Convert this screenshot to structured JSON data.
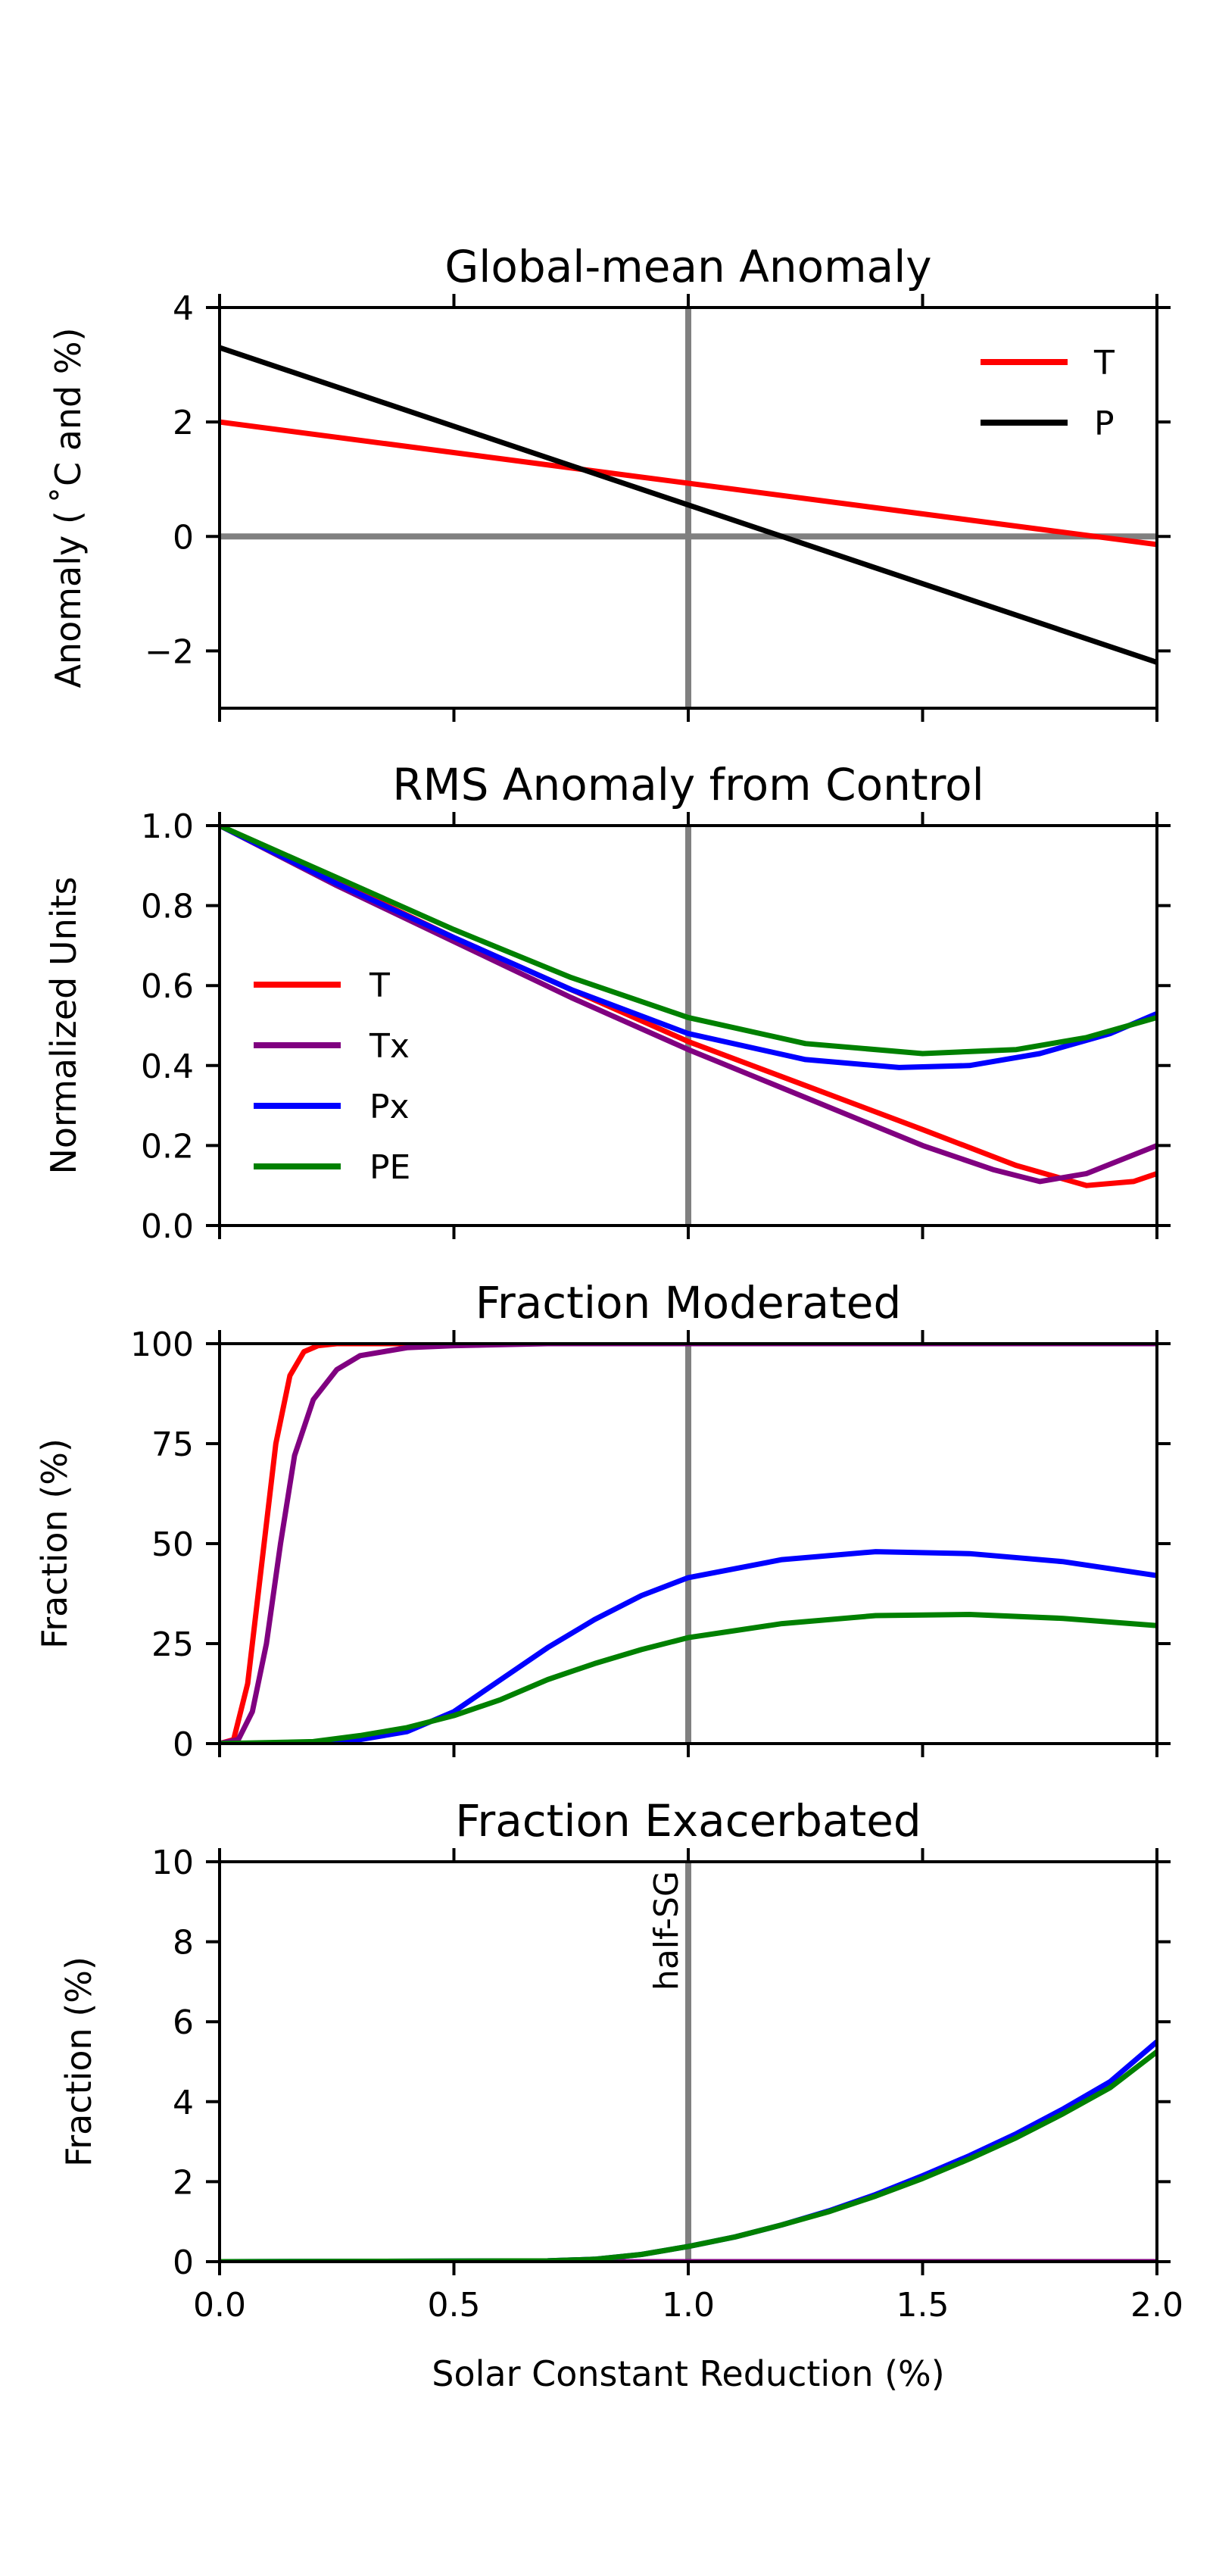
{
  "figure": {
    "shared_xlabel": "Solar Constant Reduction (%)",
    "x_tick_labels": [
      "0.0",
      "0.5",
      "1.0",
      "1.5",
      "2.0"
    ]
  },
  "chart_data": [
    {
      "type": "line",
      "title": "Global-mean Anomaly",
      "xlabel": "",
      "ylabel": "Anomaly ( ˚C and %)",
      "xlim": [
        0,
        2
      ],
      "ylim": [
        -3,
        4
      ],
      "x_ticks": [
        0,
        0.5,
        1,
        1.5,
        2
      ],
      "y_ticks": [
        -2,
        0,
        2,
        4
      ],
      "y_tick_labels": [
        "−2",
        "0",
        "2",
        "4"
      ],
      "grid": false,
      "legend": "top-right",
      "reference_lines": {
        "vertical_x": 1.0,
        "horizontal_y": 0,
        "color": "#808080"
      },
      "series": [
        {
          "name": "T",
          "color": "#ff0000",
          "x": [
            0,
            2
          ],
          "y": [
            2.0,
            -0.14
          ]
        },
        {
          "name": "P",
          "color": "#000000",
          "x": [
            0,
            2
          ],
          "y": [
            3.3,
            -2.2
          ]
        }
      ]
    },
    {
      "type": "line",
      "title": "RMS Anomaly from Control",
      "xlabel": "",
      "ylabel": "Normalized Units",
      "xlim": [
        0,
        2
      ],
      "ylim": [
        0,
        1
      ],
      "x_ticks": [
        0,
        0.5,
        1,
        1.5,
        2
      ],
      "y_ticks": [
        0,
        0.2,
        0.4,
        0.6,
        0.8,
        1.0
      ],
      "y_tick_labels": [
        "0.0",
        "0.2",
        "0.4",
        "0.6",
        "0.8",
        "1.0"
      ],
      "grid": false,
      "legend": "center-left",
      "reference_lines": {
        "vertical_x": 1.0,
        "color": "#808080"
      },
      "series": [
        {
          "name": "T",
          "color": "#ff0000",
          "x": [
            0,
            0.25,
            0.5,
            0.75,
            1.0,
            1.25,
            1.5,
            1.7,
            1.85,
            1.95,
            2.0
          ],
          "y": [
            1.0,
            0.86,
            0.72,
            0.59,
            0.46,
            0.35,
            0.24,
            0.15,
            0.1,
            0.11,
            0.13
          ]
        },
        {
          "name": "Tx",
          "color": "#800080",
          "x": [
            0,
            0.25,
            0.5,
            0.75,
            1.0,
            1.25,
            1.5,
            1.65,
            1.75,
            1.85,
            2.0
          ],
          "y": [
            1.0,
            0.85,
            0.71,
            0.57,
            0.44,
            0.32,
            0.2,
            0.14,
            0.11,
            0.13,
            0.2
          ]
        },
        {
          "name": "Px",
          "color": "#0000ff",
          "x": [
            0,
            0.25,
            0.5,
            0.75,
            1.0,
            1.25,
            1.45,
            1.6,
            1.75,
            1.9,
            2.0
          ],
          "y": [
            1.0,
            0.855,
            0.72,
            0.59,
            0.48,
            0.415,
            0.395,
            0.4,
            0.43,
            0.48,
            0.53
          ]
        },
        {
          "name": "PE",
          "color": "#008000",
          "x": [
            0,
            0.25,
            0.5,
            0.75,
            1.0,
            1.25,
            1.5,
            1.7,
            1.85,
            2.0
          ],
          "y": [
            1.0,
            0.87,
            0.74,
            0.62,
            0.52,
            0.455,
            0.43,
            0.44,
            0.47,
            0.52
          ]
        }
      ]
    },
    {
      "type": "line",
      "title": "Fraction Moderated",
      "xlabel": "",
      "ylabel": "Fraction (%)",
      "xlim": [
        0,
        2
      ],
      "ylim": [
        0,
        100
      ],
      "x_ticks": [
        0,
        0.5,
        1,
        1.5,
        2
      ],
      "y_ticks": [
        0,
        25,
        50,
        75,
        100
      ],
      "y_tick_labels": [
        "0",
        "25",
        "50",
        "75",
        "100"
      ],
      "grid": false,
      "legend": "none",
      "reference_lines": {
        "vertical_x": 1.0,
        "color": "#808080"
      },
      "series": [
        {
          "name": "",
          "color": "#ff0000",
          "x": [
            0,
            0.03,
            0.06,
            0.09,
            0.12,
            0.15,
            0.18,
            0.21,
            0.25,
            0.3,
            2.0
          ],
          "y": [
            0,
            1,
            15,
            45,
            75,
            92,
            98,
            99.5,
            100,
            100,
            100
          ]
        },
        {
          "name": "",
          "color": "#800080",
          "x": [
            0,
            0.04,
            0.07,
            0.1,
            0.13,
            0.16,
            0.2,
            0.25,
            0.3,
            0.4,
            0.5,
            0.7,
            2.0
          ],
          "y": [
            0,
            1,
            8,
            25,
            50,
            72,
            86,
            93.5,
            97,
            99,
            99.5,
            100,
            100
          ]
        },
        {
          "name": "",
          "color": "#0000ff",
          "x": [
            0,
            0.2,
            0.3,
            0.4,
            0.5,
            0.6,
            0.7,
            0.8,
            0.9,
            1.0,
            1.2,
            1.4,
            1.6,
            1.8,
            2.0
          ],
          "y": [
            0,
            0.2,
            1,
            3,
            8,
            16,
            24,
            31,
            37,
            41.5,
            46,
            48,
            47.5,
            45.5,
            42
          ]
        },
        {
          "name": "",
          "color": "#008000",
          "x": [
            0,
            0.2,
            0.3,
            0.4,
            0.5,
            0.6,
            0.7,
            0.8,
            0.9,
            1.0,
            1.2,
            1.4,
            1.6,
            1.8,
            2.0
          ],
          "y": [
            0,
            0.5,
            2,
            4,
            7,
            11,
            16,
            20,
            23.5,
            26.5,
            30,
            32,
            32.3,
            31.3,
            29.5
          ]
        }
      ]
    },
    {
      "type": "line",
      "title": "Fraction Exacerbated",
      "xlabel": "Solar Constant Reduction (%)",
      "ylabel": "Fraction (%)",
      "xlim": [
        0,
        2
      ],
      "ylim": [
        0,
        10
      ],
      "x_ticks": [
        0,
        0.5,
        1,
        1.5,
        2
      ],
      "y_ticks": [
        0,
        2,
        4,
        6,
        8,
        10
      ],
      "y_tick_labels": [
        "0",
        "2",
        "4",
        "6",
        "8",
        "10"
      ],
      "grid": false,
      "legend": "none",
      "reference_lines": {
        "vertical_x": 1.0,
        "color": "#808080"
      },
      "annotations": [
        {
          "text": "half-SG",
          "x": 1.0,
          "y": 10,
          "rotation": 90
        }
      ],
      "series": [
        {
          "name": "",
          "color": "#ff0000",
          "x": [
            0,
            2
          ],
          "y": [
            0,
            0
          ]
        },
        {
          "name": "",
          "color": "#800080",
          "x": [
            0,
            2
          ],
          "y": [
            0,
            0
          ]
        },
        {
          "name": "",
          "color": "#0000ff",
          "x": [
            0,
            0.7,
            0.8,
            0.9,
            1.0,
            1.1,
            1.2,
            1.3,
            1.4,
            1.5,
            1.6,
            1.7,
            1.8,
            1.9,
            2.0
          ],
          "y": [
            0,
            0.02,
            0.06,
            0.18,
            0.38,
            0.62,
            0.92,
            1.27,
            1.68,
            2.15,
            2.65,
            3.2,
            3.82,
            4.5,
            5.5
          ]
        },
        {
          "name": "",
          "color": "#008000",
          "x": [
            0,
            0.7,
            0.8,
            0.9,
            1.0,
            1.1,
            1.2,
            1.3,
            1.4,
            1.5,
            1.6,
            1.7,
            1.8,
            1.9,
            2.0
          ],
          "y": [
            0,
            0.02,
            0.06,
            0.18,
            0.38,
            0.62,
            0.92,
            1.25,
            1.64,
            2.08,
            2.57,
            3.1,
            3.7,
            4.35,
            5.25
          ]
        }
      ]
    }
  ]
}
